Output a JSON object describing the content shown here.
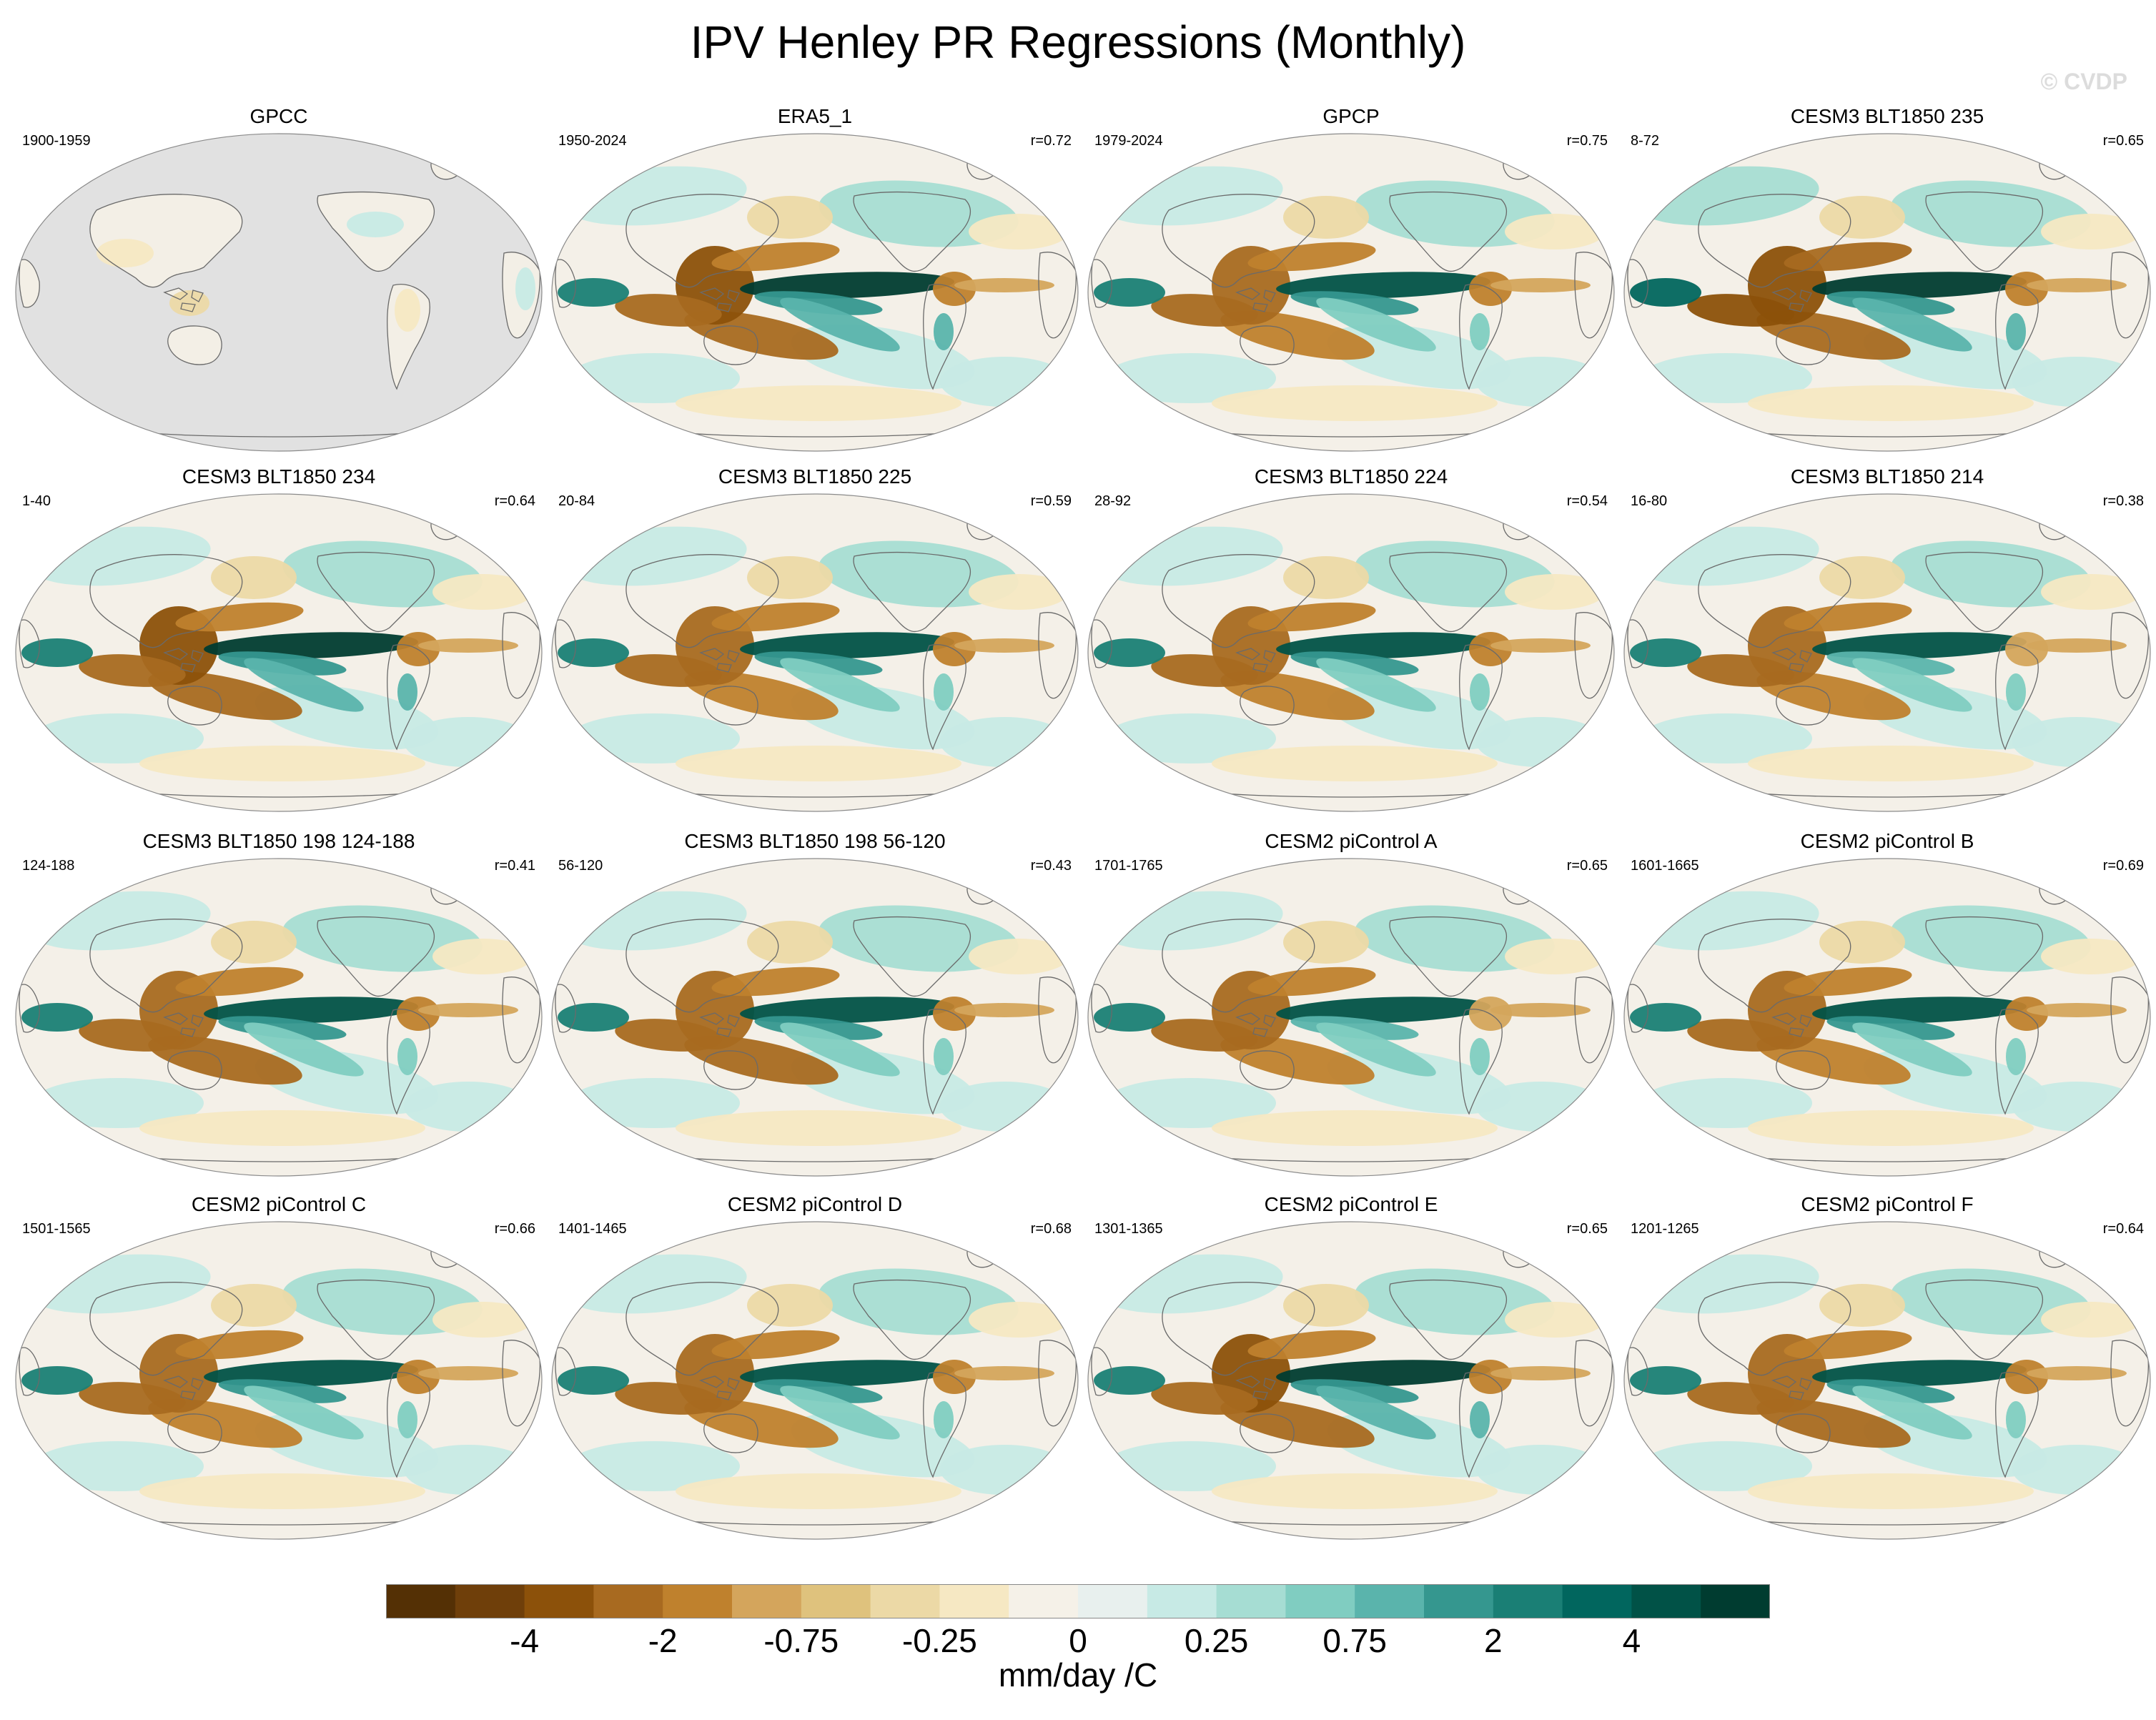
{
  "title": "IPV Henley PR Regressions (Monthly)",
  "watermark": "© CVDP",
  "chart_data": {
    "type": "heatmap",
    "projection": "robinson",
    "variable": "precipitation regression onto IPV Henley index",
    "colorbar": {
      "unit_label": "mm/day /C",
      "tick_labels": [
        "-4",
        "-2",
        "-0.75",
        "-0.25",
        "0",
        "0.25",
        "0.75",
        "2",
        "4"
      ],
      "levels": [
        -5,
        -4,
        -3,
        -2,
        -1.5,
        -1,
        -0.75,
        -0.5,
        -0.25,
        0,
        0.25,
        0.5,
        0.75,
        1,
        1.5,
        2,
        3,
        4,
        5
      ],
      "colors": [
        "#543005",
        "#6f3f0a",
        "#8c510a",
        "#a86a20",
        "#bf812d",
        "#d4a55c",
        "#dfc27d",
        "#ecd9a6",
        "#f6e8c3",
        "#f5f1e8",
        "#e8f0ee",
        "#c7eae5",
        "#a6ddd3",
        "#80cdc1",
        "#5ab4ac",
        "#35978f",
        "#1a7f75",
        "#01665e",
        "#015247",
        "#003c30"
      ]
    },
    "panels": [
      {
        "title": "GPCC",
        "years": "1900-1959",
        "corr": "",
        "ocean_masked": true,
        "intensity": 0.25
      },
      {
        "title": "ERA5_1",
        "years": "1950-2024",
        "corr": "r=0.72",
        "ocean_masked": false,
        "intensity": 0.95
      },
      {
        "title": "GPCP",
        "years": "1979-2024",
        "corr": "r=0.75",
        "ocean_masked": false,
        "intensity": 0.9
      },
      {
        "title": "CESM3 BLT1850 235",
        "years": "8-72",
        "corr": "r=0.65",
        "ocean_masked": false,
        "intensity": 1.0
      },
      {
        "title": "CESM3 BLT1850 234",
        "years": "1-40",
        "corr": "r=0.64",
        "ocean_masked": false,
        "intensity": 0.95
      },
      {
        "title": "CESM3 BLT1850 225",
        "years": "20-84",
        "corr": "r=0.59",
        "ocean_masked": false,
        "intensity": 0.9
      },
      {
        "title": "CESM3 BLT1850 224",
        "years": "28-92",
        "corr": "r=0.54",
        "ocean_masked": false,
        "intensity": 0.88
      },
      {
        "title": "CESM3 BLT1850 214",
        "years": "16-80",
        "corr": "r=0.38",
        "ocean_masked": false,
        "intensity": 0.85
      },
      {
        "title": "CESM3 BLT1850 198 124-188",
        "years": "124-188",
        "corr": "r=0.41",
        "ocean_masked": false,
        "intensity": 0.92
      },
      {
        "title": "CESM3 BLT1850 198 56-120",
        "years": "56-120",
        "corr": "r=0.43",
        "ocean_masked": false,
        "intensity": 0.92
      },
      {
        "title": "CESM2 piControl A",
        "years": "1701-1765",
        "corr": "r=0.65",
        "ocean_masked": false,
        "intensity": 0.85
      },
      {
        "title": "CESM2 piControl B",
        "years": "1601-1665",
        "corr": "r=0.69",
        "ocean_masked": false,
        "intensity": 0.88
      },
      {
        "title": "CESM2 piControl C",
        "years": "1501-1565",
        "corr": "r=0.66",
        "ocean_masked": false,
        "intensity": 0.9
      },
      {
        "title": "CESM2 piControl D",
        "years": "1401-1465",
        "corr": "r=0.68",
        "ocean_masked": false,
        "intensity": 0.9
      },
      {
        "title": "CESM2 piControl E",
        "years": "1301-1365",
        "corr": "r=0.65",
        "ocean_masked": false,
        "intensity": 0.95
      },
      {
        "title": "CESM2 piControl F",
        "years": "1201-1265",
        "corr": "r=0.64",
        "ocean_masked": false,
        "intensity": 0.92
      }
    ]
  }
}
